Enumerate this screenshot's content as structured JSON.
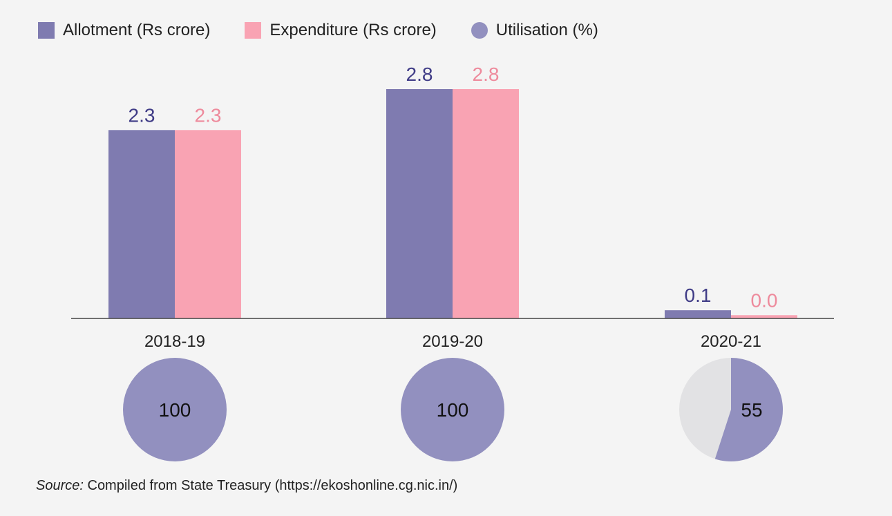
{
  "legend": {
    "allotment": "Allotment (Rs crore)",
    "expenditure": "Expenditure (Rs crore)",
    "utilisation": "Utilisation (%)"
  },
  "colors": {
    "allotment": "#7f7bb0",
    "allotment_label": "#3f3b86",
    "expenditure": "#f9a3b3",
    "expenditure_label": "#ee8a9c",
    "utilisation": "#9290bf",
    "utilisation_rest": "#e2e2e4",
    "axis": "#444444",
    "text": "#222222"
  },
  "source": {
    "prefix": "Source:",
    "text": " Compiled from State Treasury (https://ekoshonline.cg.nic.in/)"
  },
  "chart_data": {
    "type": "bar",
    "categories": [
      "2018-19",
      "2019-20",
      "2020-21"
    ],
    "series": [
      {
        "name": "Allotment (Rs crore)",
        "values": [
          2.3,
          2.8,
          0.1
        ],
        "labels": [
          "2.3",
          "2.8",
          "0.1"
        ]
      },
      {
        "name": "Expenditure (Rs crore)",
        "values": [
          2.3,
          2.8,
          0.04
        ],
        "labels": [
          "2.3",
          "2.8",
          "0.0"
        ]
      }
    ],
    "ylim": [
      0,
      2.8
    ],
    "utilisation": {
      "name": "Utilisation (%)",
      "values": [
        100,
        100,
        55
      ]
    },
    "legend_position": "top-left",
    "grid": false
  }
}
